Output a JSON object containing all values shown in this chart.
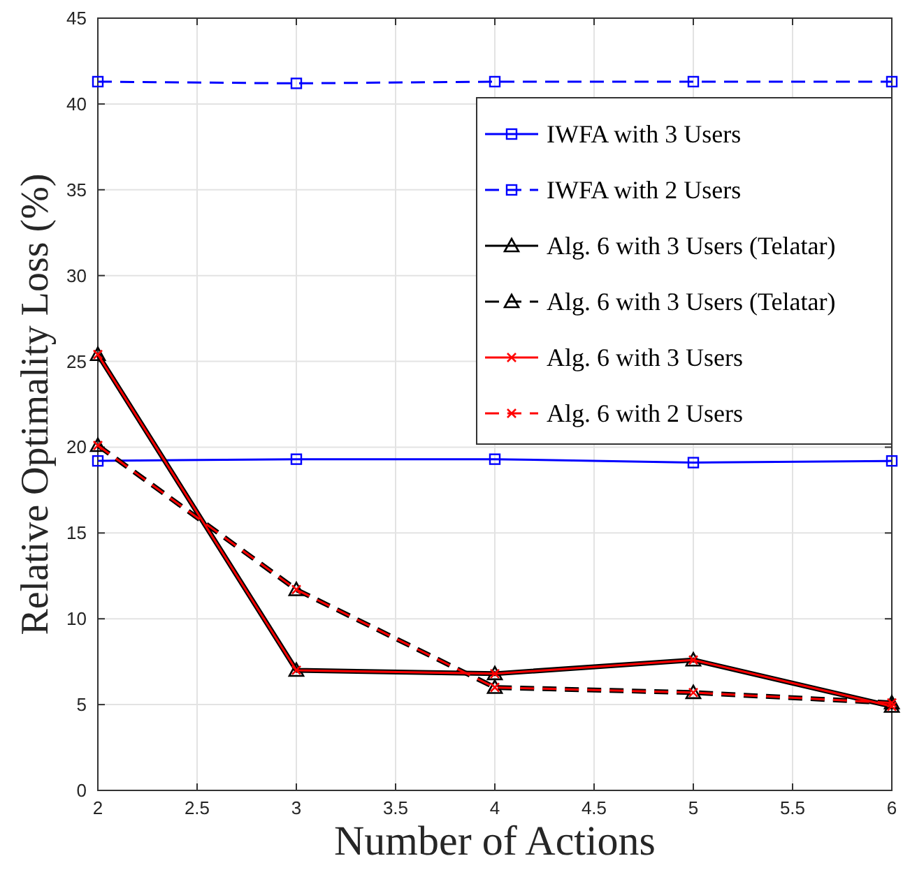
{
  "chart_data": {
    "type": "line",
    "xlabel": "Number of Actions",
    "ylabel": "Relative Optimality Loss (%)",
    "x": [
      2,
      3,
      4,
      5,
      6
    ],
    "series": [
      {
        "name": "IWFA with 3 Users",
        "color": "#0000ff",
        "marker": "square",
        "line_style": "solid",
        "values": [
          19.2,
          19.3,
          19.3,
          19.1,
          19.2
        ]
      },
      {
        "name": "IWFA with 2 Users",
        "color": "#0000ff",
        "marker": "square",
        "line_style": "dashed",
        "values": [
          41.3,
          41.2,
          41.3,
          41.3,
          41.3
        ]
      },
      {
        "name": "Alg. 6 with 3 Users (Telatar)",
        "color": "#000000",
        "marker": "triangle",
        "line_style": "solid",
        "values": [
          25.4,
          7.0,
          6.8,
          7.6,
          4.9
        ]
      },
      {
        "name": "Alg. 6 with 3 Users (Telatar)",
        "color": "#000000",
        "marker": "triangle",
        "line_style": "dashed",
        "values": [
          20.1,
          11.7,
          6.0,
          5.7,
          5.1
        ]
      },
      {
        "name": "Alg. 6 with 3 Users",
        "color": "#ff0000",
        "marker": "cross",
        "line_style": "solid",
        "values": [
          25.4,
          7.0,
          6.8,
          7.6,
          4.9
        ]
      },
      {
        "name": "Alg. 6 with 2 Users",
        "color": "#ff0000",
        "marker": "cross",
        "line_style": "dashed",
        "values": [
          20.1,
          11.7,
          6.0,
          5.7,
          5.1
        ]
      }
    ],
    "xlim": [
      2,
      6
    ],
    "xticks": [
      2,
      2.5,
      3,
      3.5,
      4,
      4.5,
      5,
      5.5,
      6
    ],
    "ylim": [
      0,
      45
    ],
    "yticks": [
      0,
      5,
      10,
      15,
      20,
      25,
      30,
      35,
      40,
      45
    ],
    "grid": true,
    "legend": "top right"
  }
}
